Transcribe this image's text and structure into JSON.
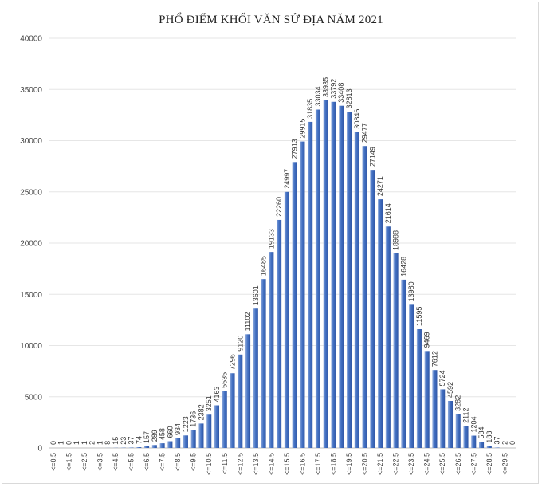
{
  "chart_data": {
    "type": "bar",
    "title": "PHỔ ĐIỂM KHỐI VĂN SỬ ĐỊA NĂM 2021",
    "xlabel": "",
    "ylabel": "",
    "ylim": [
      0,
      40000
    ],
    "yticks": [
      "0",
      "5000",
      "10000",
      "15000",
      "20000",
      "25000",
      "30000",
      "35000",
      "40000"
    ],
    "tick_labels": [
      "<=0.5",
      "<=1.5",
      "<=2.5",
      "<=3.5",
      "<=4.5",
      "<=5.5",
      "<=6.5",
      "<=7.5",
      "<=8.5",
      "<=9.5",
      "<=10.5",
      "<=11.5",
      "<=12.5",
      "<=13.5",
      "<=14.5",
      "<=15.5",
      "<=16.5",
      "<=17.5",
      "<=18.5",
      "<=19.5",
      "<=20.5",
      "<=21.5",
      "<=22.5",
      "<=23.5",
      "<=24.5",
      "<=25.5",
      "<=26.5",
      "<=27.5",
      "<=28.5",
      "<=29.5"
    ],
    "values": [
      0,
      1,
      0,
      1,
      1,
      2,
      1,
      8,
      15,
      23,
      37,
      74,
      157,
      289,
      458,
      660,
      934,
      1223,
      1736,
      2382,
      3251,
      4163,
      5535,
      7296,
      9120,
      11102,
      13601,
      16485,
      19133,
      22260,
      24997,
      27913,
      29915,
      31835,
      33034,
      33935,
      33792,
      33408,
      32813,
      30846,
      29477,
      27149,
      24271,
      21614,
      18988,
      16428,
      13980,
      11595,
      9469,
      7612,
      5724,
      4592,
      3282,
      2112,
      1204,
      584,
      188,
      37,
      2,
      0
    ],
    "colors": {
      "bar": "#4472C4",
      "bar_light": "#8FAADC",
      "bar_dark": "#2F55A4"
    },
    "grid": true,
    "legend": "none"
  }
}
